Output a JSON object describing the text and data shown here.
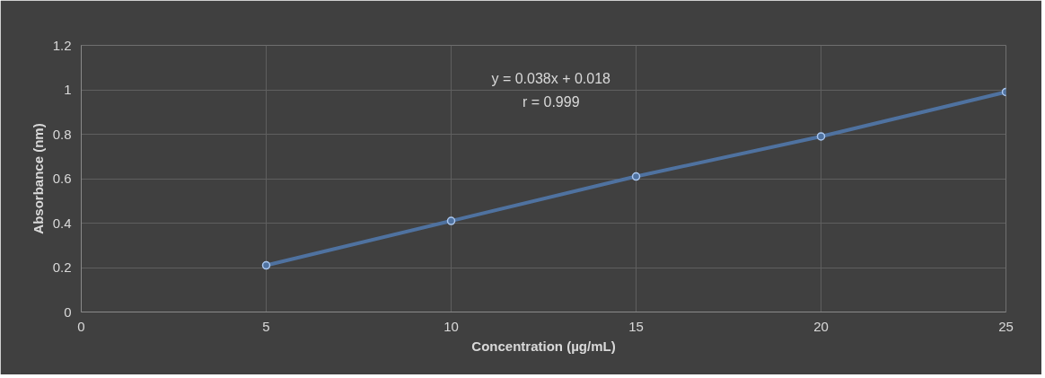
{
  "chart_data": {
    "type": "line",
    "xlabel": "Concentration (µg/mL)",
    "ylabel": "Absorbance (nm)",
    "annotations": [
      "y = 0.038x + 0.018",
      "r = 0.999"
    ],
    "series": [
      {
        "color": "#4f72a0",
        "x": [
          5,
          10,
          15,
          20,
          25
        ],
        "values": [
          0.21,
          0.41,
          0.61,
          0.79,
          0.99
        ]
      }
    ],
    "xlim": [
      0,
      25
    ],
    "xticks": [
      0,
      5,
      10,
      15,
      20,
      25
    ],
    "ylim": [
      0,
      1.2
    ],
    "yticks": [
      0,
      0.2,
      0.4,
      0.6,
      0.8,
      1,
      1.2
    ],
    "grid": true,
    "marker": "circle",
    "line_style": "solid"
  }
}
